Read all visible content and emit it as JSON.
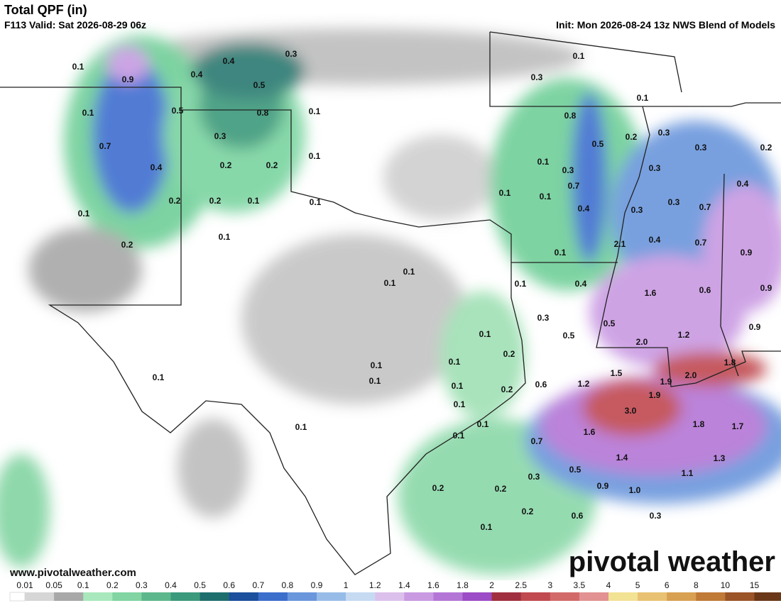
{
  "header": {
    "title": "Total QPF (in)",
    "valid": "F113 Valid: Sat 2026-08-29 06z",
    "init": "Init: Mon 2026-08-24 13z NWS Blend of Models"
  },
  "map_labels": [
    "0.1",
    "0.9",
    "0.4",
    "0.4",
    "0.3",
    "0.5",
    "0.1",
    "0.3",
    "0.1",
    "0.1",
    "0.5",
    "0.8",
    "0.1",
    "0.8",
    "0.3",
    "0.7",
    "0.5",
    "0.2",
    "0.3",
    "0.3",
    "0.2",
    "0.1",
    "0.4",
    "0.2",
    "0.2",
    "0.1",
    "0.3",
    "0.3",
    "0.4",
    "0.7",
    "0.1",
    "0.1",
    "0.2",
    "0.2",
    "0.1",
    "0.1",
    "0.3",
    "0.7",
    "0.4",
    "0.3",
    "0.1",
    "0.1",
    "0.4",
    "0.7",
    "2.1",
    "0.2",
    "0.9",
    "0.1",
    "0.1",
    "0.1",
    "0.1",
    "0.4",
    "0.9",
    "0.6",
    "1.6",
    "0.3",
    "0.5",
    "0.9",
    "0.1",
    "0.5",
    "1.2",
    "2.0",
    "0.2",
    "0.1",
    "1.8",
    "0.1",
    "1.5",
    "2.0",
    "0.1",
    "0.1",
    "1.9",
    "1.2",
    "0.6",
    "0.1",
    "0.2",
    "1.9",
    "0.1",
    "3.0",
    "0.1",
    "1.8",
    "1.7",
    "0.1",
    "1.6",
    "0.1",
    "0.7",
    "1.4",
    "1.3",
    "0.5",
    "1.1",
    "0.3",
    "0.9",
    "1.0",
    "0.2",
    "0.2",
    "0.2",
    "0.6",
    "0.3",
    "0.1"
  ],
  "colorbar": {
    "labels": [
      "0.01",
      "0.05",
      "0.1",
      "0.2",
      "0.3",
      "0.4",
      "0.5",
      "0.6",
      "0.7",
      "0.8",
      "0.9",
      "1",
      "1.2",
      "1.4",
      "1.6",
      "1.8",
      "2",
      "2.5",
      "3",
      "3.5",
      "4",
      "5",
      "6",
      "8",
      "10",
      "15"
    ],
    "colors": [
      "#d6d6d6",
      "#a8a8a8",
      "#a8e8bc",
      "#82d4a2",
      "#5cb88c",
      "#3c9a7c",
      "#1f6e6e",
      "#1c4f9c",
      "#3c6ecc",
      "#6a96dc",
      "#98bce8",
      "#c6daf2",
      "#dcc0ec",
      "#c99ae2",
      "#b476d6",
      "#9c4cc6",
      "#a03040",
      "#c04a50",
      "#d26a6a",
      "#e29292",
      "#f2e294",
      "#e8c272",
      "#d8a052",
      "#c07a38",
      "#9a5428",
      "#6a3818"
    ]
  },
  "footer": {
    "url": "www.pivotalweather.com",
    "logo": "pivotal weather"
  }
}
